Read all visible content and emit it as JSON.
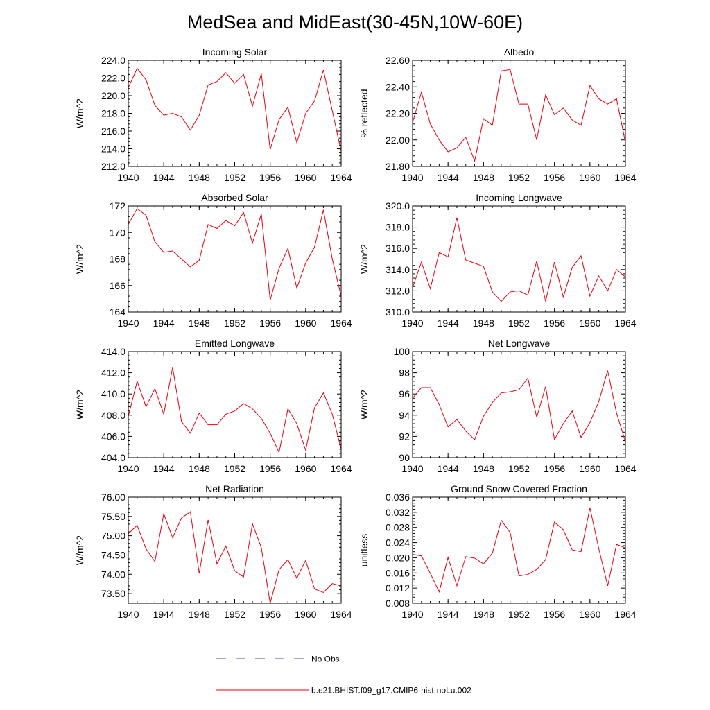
{
  "figure": {
    "title": "MedSea and MidEast(30-45N,10W-60E)"
  },
  "legend": [
    {
      "label": "No Obs",
      "color": "#4b4bb4",
      "style": "dashed"
    },
    {
      "label": "b.e21.BHIST.f09_g17.CMIP6-hist-noLu.002",
      "color": "#e8000b",
      "style": "solid"
    }
  ],
  "line_color": "#e8000b",
  "chart_data": [
    {
      "type": "line",
      "title": "Incoming Solar",
      "ylabel": "W/m^2",
      "xlim": [
        1940,
        1964
      ],
      "ylim": [
        212,
        224
      ],
      "xticks": [
        "1940",
        "1944",
        "1948",
        "1952",
        "1956",
        "1960",
        "1964"
      ],
      "yticks": [
        "212.0",
        "214.0",
        "216.0",
        "218.0",
        "220.0",
        "222.0",
        "224.0"
      ],
      "x": [
        1940,
        1941,
        1942,
        1943,
        1944,
        1945,
        1946,
        1947,
        1948,
        1949,
        1950,
        1951,
        1952,
        1953,
        1954,
        1955,
        1956,
        1957,
        1958,
        1959,
        1960,
        1961,
        1962,
        1963,
        1964
      ],
      "series": [
        {
          "name": "b.e21.BHIST.f09_g17.CMIP6-hist-noLu.002",
          "values": [
            220.9,
            223.1,
            221.8,
            218.9,
            217.8,
            218.0,
            217.6,
            216.1,
            217.8,
            221.2,
            221.6,
            222.6,
            221.4,
            222.4,
            218.8,
            222.5,
            213.9,
            217.3,
            218.7,
            214.7,
            218.0,
            219.4,
            222.9,
            218.3,
            213.7
          ]
        }
      ]
    },
    {
      "type": "line",
      "title": "Albedo",
      "ylabel": "% reflected",
      "xlim": [
        1940,
        1964
      ],
      "ylim": [
        21.8,
        22.6
      ],
      "xticks": [
        "1940",
        "1944",
        "1948",
        "1952",
        "1956",
        "1960",
        "1964"
      ],
      "yticks": [
        "21.80",
        "22.00",
        "22.20",
        "22.40",
        "22.60"
      ],
      "x": [
        1940,
        1941,
        1942,
        1943,
        1944,
        1945,
        1946,
        1947,
        1948,
        1949,
        1950,
        1951,
        1952,
        1953,
        1954,
        1955,
        1956,
        1957,
        1958,
        1959,
        1960,
        1961,
        1962,
        1963,
        1964
      ],
      "series": [
        {
          "name": "b.e21.BHIST.f09_g17.CMIP6-hist-noLu.002",
          "values": [
            22.13,
            22.36,
            22.12,
            22.0,
            21.91,
            21.94,
            22.02,
            21.84,
            22.16,
            22.11,
            22.52,
            22.53,
            22.27,
            22.27,
            22.0,
            22.34,
            22.19,
            22.24,
            22.15,
            22.11,
            22.41,
            22.31,
            22.27,
            22.31,
            21.98
          ]
        }
      ]
    },
    {
      "type": "line",
      "title": "Absorbed Solar",
      "ylabel": "W/m^2",
      "xlim": [
        1940,
        1964
      ],
      "ylim": [
        164,
        172
      ],
      "xticks": [
        "1940",
        "1944",
        "1948",
        "1952",
        "1956",
        "1960",
        "1964"
      ],
      "yticks": [
        "164",
        "166",
        "168",
        "170",
        "172"
      ],
      "x": [
        1940,
        1941,
        1942,
        1943,
        1944,
        1945,
        1946,
        1947,
        1948,
        1949,
        1950,
        1951,
        1952,
        1953,
        1954,
        1955,
        1956,
        1957,
        1958,
        1959,
        1960,
        1961,
        1962,
        1963,
        1964
      ],
      "series": [
        {
          "name": "b.e21.BHIST.f09_g17.CMIP6-hist-noLu.002",
          "values": [
            170.6,
            171.8,
            171.3,
            169.3,
            168.5,
            168.6,
            168.0,
            167.4,
            167.9,
            170.6,
            170.3,
            170.9,
            170.5,
            171.5,
            169.2,
            171.4,
            164.9,
            167.3,
            168.8,
            165.8,
            167.7,
            168.9,
            171.7,
            168.0,
            165.2
          ]
        }
      ]
    },
    {
      "type": "line",
      "title": "Incoming Longwave",
      "ylabel": "W/m^2",
      "xlim": [
        1940,
        1964
      ],
      "ylim": [
        310,
        320
      ],
      "xticks": [
        "1940",
        "1944",
        "1948",
        "1952",
        "1956",
        "1960",
        "1964"
      ],
      "yticks": [
        "310.0",
        "312.0",
        "314.0",
        "316.0",
        "318.0",
        "320.0"
      ],
      "x": [
        1940,
        1941,
        1942,
        1943,
        1944,
        1945,
        1946,
        1947,
        1948,
        1949,
        1950,
        1951,
        1952,
        1953,
        1954,
        1955,
        1956,
        1957,
        1958,
        1959,
        1960,
        1961,
        1962,
        1963,
        1964
      ],
      "series": [
        {
          "name": "b.e21.BHIST.f09_g17.CMIP6-hist-noLu.002",
          "values": [
            312.3,
            314.7,
            312.2,
            315.6,
            315.2,
            318.9,
            314.9,
            314.6,
            314.3,
            311.9,
            311.0,
            311.9,
            312.0,
            311.6,
            314.8,
            311.0,
            314.7,
            311.4,
            314.2,
            315.3,
            311.5,
            313.4,
            312.0,
            314.0,
            313.3
          ]
        }
      ]
    },
    {
      "type": "line",
      "title": "Emitted Longwave",
      "ylabel": "W/m^2",
      "xlim": [
        1940,
        1964
      ],
      "ylim": [
        404,
        414
      ],
      "xticks": [
        "1940",
        "1944",
        "1948",
        "1952",
        "1956",
        "1960",
        "1964"
      ],
      "yticks": [
        "404.0",
        "406.0",
        "408.0",
        "410.0",
        "412.0",
        "414.0"
      ],
      "x": [
        1940,
        1941,
        1942,
        1943,
        1944,
        1945,
        1946,
        1947,
        1948,
        1949,
        1950,
        1951,
        1952,
        1953,
        1954,
        1955,
        1956,
        1957,
        1958,
        1959,
        1960,
        1961,
        1962,
        1963,
        1964
      ],
      "series": [
        {
          "name": "b.e21.BHIST.f09_g17.CMIP6-hist-noLu.002",
          "values": [
            407.9,
            411.2,
            408.8,
            410.5,
            408.1,
            412.5,
            407.4,
            406.3,
            408.2,
            407.1,
            407.1,
            408.1,
            408.4,
            409.1,
            408.6,
            407.7,
            406.3,
            404.5,
            408.6,
            407.2,
            404.7,
            408.7,
            410.1,
            408.1,
            404.8
          ]
        }
      ]
    },
    {
      "type": "line",
      "title": "Net Longwave",
      "ylabel": "W/m^2",
      "xlim": [
        1940,
        1964
      ],
      "ylim": [
        90,
        100
      ],
      "xticks": [
        "1940",
        "1944",
        "1948",
        "1952",
        "1956",
        "1960",
        "1964"
      ],
      "yticks": [
        "90",
        "92",
        "94",
        "96",
        "98",
        "100"
      ],
      "x": [
        1940,
        1941,
        1942,
        1943,
        1944,
        1945,
        1946,
        1947,
        1948,
        1949,
        1950,
        1951,
        1952,
        1953,
        1954,
        1955,
        1956,
        1957,
        1958,
        1959,
        1960,
        1961,
        1962,
        1963,
        1964
      ],
      "series": [
        {
          "name": "b.e21.BHIST.f09_g17.CMIP6-hist-noLu.002",
          "values": [
            95.6,
            96.6,
            96.6,
            95.0,
            92.9,
            93.6,
            92.5,
            91.7,
            93.9,
            95.2,
            96.1,
            96.2,
            96.4,
            97.5,
            93.8,
            96.7,
            91.7,
            93.2,
            94.4,
            91.9,
            93.3,
            95.3,
            98.2,
            94.2,
            91.5
          ]
        }
      ]
    },
    {
      "type": "line",
      "title": "Net Radiation",
      "ylabel": "W/m^2",
      "xlim": [
        1940,
        1964
      ],
      "ylim": [
        73.25,
        76
      ],
      "xticks": [
        "1940",
        "1944",
        "1948",
        "1952",
        "1956",
        "1960",
        "1964"
      ],
      "yticks": [
        "73.50",
        "74.00",
        "74.50",
        "75.00",
        "75.50",
        "76.00"
      ],
      "x": [
        1940,
        1941,
        1942,
        1943,
        1944,
        1945,
        1946,
        1947,
        1948,
        1949,
        1950,
        1951,
        1952,
        1953,
        1954,
        1955,
        1956,
        1957,
        1958,
        1959,
        1960,
        1961,
        1962,
        1963,
        1964
      ],
      "series": [
        {
          "name": "b.e21.BHIST.f09_g17.CMIP6-hist-noLu.002",
          "values": [
            75.05,
            75.27,
            74.66,
            74.33,
            75.57,
            74.95,
            75.46,
            75.62,
            74.02,
            75.41,
            74.27,
            74.73,
            74.09,
            73.93,
            75.31,
            74.69,
            73.25,
            74.12,
            74.38,
            73.9,
            74.36,
            73.62,
            73.53,
            73.76,
            73.7
          ]
        }
      ]
    },
    {
      "type": "line",
      "title": "Ground Snow Covered Fraction",
      "ylabel": "unitless",
      "xlim": [
        1940,
        1964
      ],
      "ylim": [
        0.008,
        0.036
      ],
      "xticks": [
        "1940",
        "1944",
        "1948",
        "1952",
        "1956",
        "1960",
        "1964"
      ],
      "yticks": [
        "0.008",
        "0.012",
        "0.016",
        "0.020",
        "0.024",
        "0.028",
        "0.032",
        "0.036"
      ],
      "x": [
        1940,
        1941,
        1942,
        1943,
        1944,
        1945,
        1946,
        1947,
        1948,
        1949,
        1950,
        1951,
        1952,
        1953,
        1954,
        1955,
        1956,
        1957,
        1958,
        1959,
        1960,
        1961,
        1962,
        1963,
        1964
      ],
      "series": [
        {
          "name": "b.e21.BHIST.f09_g17.CMIP6-hist-noLu.002",
          "values": [
            0.0209,
            0.0205,
            0.0159,
            0.011,
            0.0201,
            0.0126,
            0.0203,
            0.0199,
            0.0184,
            0.0212,
            0.0299,
            0.0267,
            0.0152,
            0.0156,
            0.0169,
            0.0195,
            0.0294,
            0.0274,
            0.0221,
            0.0216,
            0.0332,
            0.0224,
            0.0126,
            0.0235,
            0.0226
          ]
        }
      ]
    }
  ]
}
